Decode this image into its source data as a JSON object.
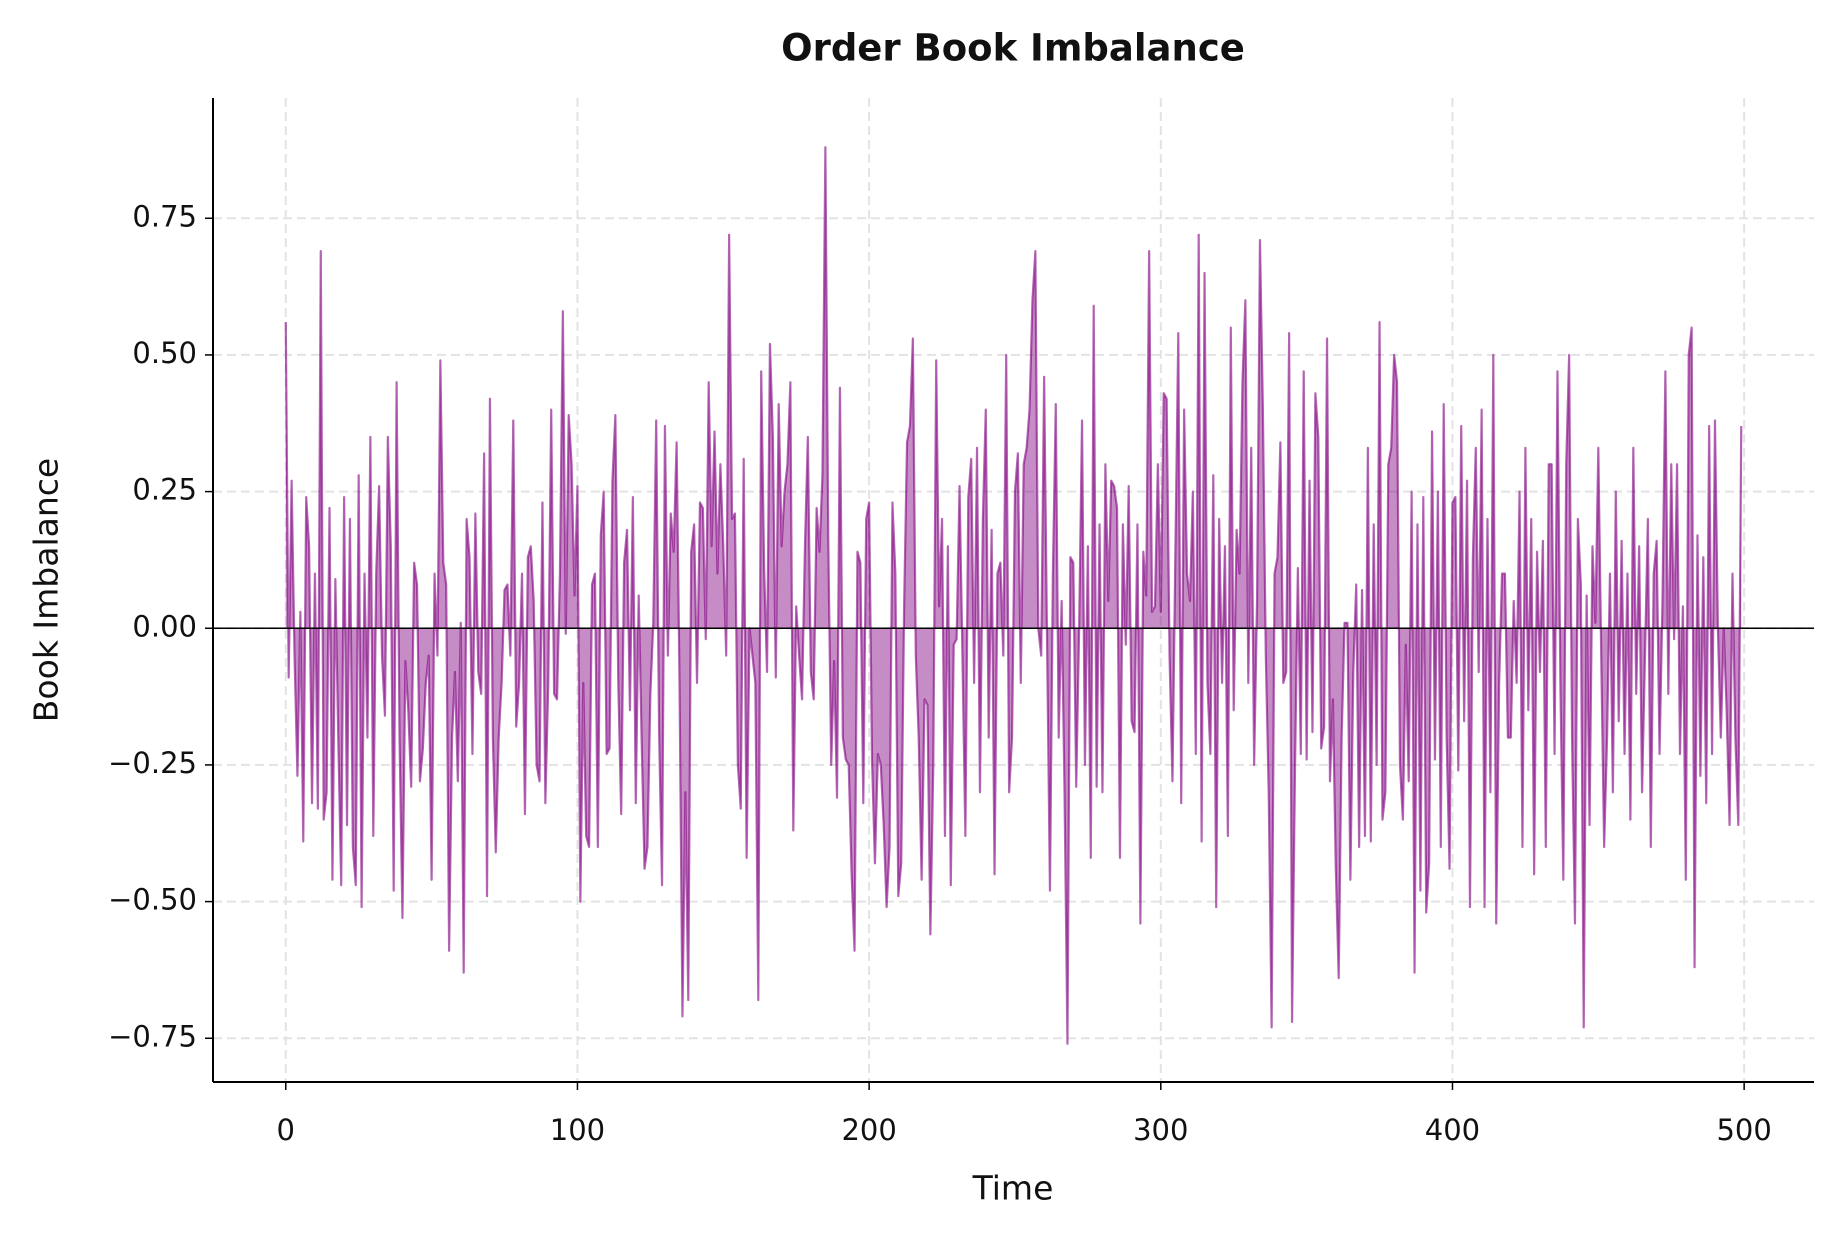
{
  "chart_data": {
    "type": "area",
    "title": "Order Book Imbalance",
    "xlabel": "Time",
    "ylabel": "Book Imbalance",
    "color": "purple",
    "grid": true,
    "axhline": 0,
    "xlim": [
      -24.95,
      523.95
    ],
    "xticks": [
      0,
      100,
      200,
      300,
      400,
      500
    ],
    "ylim": [
      -0.83,
      0.97
    ],
    "yticks": [
      {
        "value": -0.75,
        "label": "−0.75"
      },
      {
        "value": -0.5,
        "label": "−0.50"
      },
      {
        "value": -0.25,
        "label": "−0.25"
      },
      {
        "value": 0,
        "label": "0.00"
      },
      {
        "value": 0.25,
        "label": "0.25"
      },
      {
        "value": 0.5,
        "label": "0.50"
      },
      {
        "value": 0.75,
        "label": "0.75"
      }
    ],
    "x": [
      0,
      1,
      2,
      3,
      4,
      5,
      6,
      7,
      8,
      9,
      10,
      11,
      12,
      13,
      14,
      15,
      16,
      17,
      18,
      19,
      20,
      21,
      22,
      23,
      24,
      25,
      26,
      27,
      28,
      29,
      30,
      31,
      32,
      33,
      34,
      35,
      36,
      37,
      38,
      39,
      40,
      41,
      42,
      43,
      44,
      45,
      46,
      47,
      48,
      49,
      50,
      51,
      52,
      53,
      54,
      55,
      56,
      57,
      58,
      59,
      60,
      61,
      62,
      63,
      64,
      65,
      66,
      67,
      68,
      69,
      70,
      71,
      72,
      73,
      74,
      75,
      76,
      77,
      78,
      79,
      80,
      81,
      82,
      83,
      84,
      85,
      86,
      87,
      88,
      89,
      90,
      91,
      92,
      93,
      94,
      95,
      96,
      97,
      98,
      99,
      100,
      101,
      102,
      103,
      104,
      105,
      106,
      107,
      108,
      109,
      110,
      111,
      112,
      113,
      114,
      115,
      116,
      117,
      118,
      119,
      120,
      121,
      122,
      123,
      124,
      125,
      126,
      127,
      128,
      129,
      130,
      131,
      132,
      133,
      134,
      135,
      136,
      137,
      138,
      139,
      140,
      141,
      142,
      143,
      144,
      145,
      146,
      147,
      148,
      149,
      150,
      151,
      152,
      153,
      154,
      155,
      156,
      157,
      158,
      159,
      160,
      161,
      162,
      163,
      164,
      165,
      166,
      167,
      168,
      169,
      170,
      171,
      172,
      173,
      174,
      175,
      176,
      177,
      178,
      179,
      180,
      181,
      182,
      183,
      184,
      185,
      186,
      187,
      188,
      189,
      190,
      191,
      192,
      193,
      194,
      195,
      196,
      197,
      198,
      199,
      200,
      201,
      202,
      203,
      204,
      205,
      206,
      207,
      208,
      209,
      210,
      211,
      212,
      213,
      214,
      215,
      216,
      217,
      218,
      219,
      220,
      221,
      222,
      223,
      224,
      225,
      226,
      227,
      228,
      229,
      230,
      231,
      232,
      233,
      234,
      235,
      236,
      237,
      238,
      239,
      240,
      241,
      242,
      243,
      244,
      245,
      246,
      247,
      248,
      249,
      250,
      251,
      252,
      253,
      254,
      255,
      256,
      257,
      258,
      259,
      260,
      261,
      262,
      263,
      264,
      265,
      266,
      267,
      268,
      269,
      270,
      271,
      272,
      273,
      274,
      275,
      276,
      277,
      278,
      279,
      280,
      281,
      282,
      283,
      284,
      285,
      286,
      287,
      288,
      289,
      290,
      291,
      292,
      293,
      294,
      295,
      296,
      297,
      298,
      299,
      300,
      301,
      302,
      303,
      304,
      305,
      306,
      307,
      308,
      309,
      310,
      311,
      312,
      313,
      314,
      315,
      316,
      317,
      318,
      319,
      320,
      321,
      322,
      323,
      324,
      325,
      326,
      327,
      328,
      329,
      330,
      331,
      332,
      333,
      334,
      335,
      336,
      337,
      338,
      339,
      340,
      341,
      342,
      343,
      344,
      345,
      346,
      347,
      348,
      349,
      350,
      351,
      352,
      353,
      354,
      355,
      356,
      357,
      358,
      359,
      360,
      361,
      362,
      363,
      364,
      365,
      366,
      367,
      368,
      369,
      370,
      371,
      372,
      373,
      374,
      375,
      376,
      377,
      378,
      379,
      380,
      381,
      382,
      383,
      384,
      385,
      386,
      387,
      388,
      389,
      390,
      391,
      392,
      393,
      394,
      395,
      396,
      397,
      398,
      399,
      400,
      401,
      402,
      403,
      404,
      405,
      406,
      407,
      408,
      409,
      410,
      411,
      412,
      413,
      414,
      415,
      416,
      417,
      418,
      419,
      420,
      421,
      422,
      423,
      424,
      425,
      426,
      427,
      428,
      429,
      430,
      431,
      432,
      433,
      434,
      435,
      436,
      437,
      438,
      439,
      440,
      441,
      442,
      443,
      444,
      445,
      446,
      447,
      448,
      449,
      450,
      451,
      452,
      453,
      454,
      455,
      456,
      457,
      458,
      459,
      460,
      461,
      462,
      463,
      464,
      465,
      466,
      467,
      468,
      469,
      470,
      471,
      472,
      473,
      474,
      475,
      476,
      477,
      478,
      479,
      480,
      481,
      482,
      483,
      484,
      485,
      486,
      487,
      488,
      489,
      490,
      491,
      492,
      493,
      494,
      495,
      496,
      497,
      498,
      499
    ],
    "values": [
      0.56,
      -0.09,
      0.27,
      -0.05,
      -0.27,
      0.03,
      -0.39,
      0.24,
      0.15,
      -0.32,
      0.1,
      -0.33,
      0.69,
      -0.35,
      -0.3,
      0.22,
      -0.46,
      0.09,
      -0.2,
      -0.47,
      0.24,
      -0.36,
      0.2,
      -0.4,
      -0.47,
      0.28,
      -0.51,
      0.1,
      -0.2,
      0.35,
      -0.38,
      0.1,
      0.26,
      -0.05,
      -0.16,
      0.35,
      0.15,
      -0.48,
      0.45,
      -0.2,
      -0.53,
      -0.06,
      -0.15,
      -0.29,
      0.12,
      0.08,
      -0.28,
      -0.22,
      -0.1,
      -0.05,
      -0.46,
      0.1,
      -0.05,
      0.49,
      0.12,
      0.08,
      -0.59,
      -0.2,
      -0.08,
      -0.28,
      0.01,
      -0.63,
      0.2,
      0.13,
      -0.23,
      0.21,
      -0.08,
      -0.12,
      0.32,
      -0.49,
      0.42,
      -0.2,
      -0.41,
      -0.2,
      -0.1,
      0.07,
      0.08,
      -0.05,
      0.38,
      -0.18,
      -0.1,
      0.1,
      -0.34,
      0.13,
      0.15,
      0.05,
      -0.25,
      -0.28,
      0.23,
      -0.32,
      -0.1,
      0.4,
      -0.12,
      -0.13,
      0.1,
      0.58,
      -0.01,
      0.39,
      0.3,
      0.06,
      0.26,
      -0.5,
      -0.1,
      -0.38,
      -0.4,
      0.08,
      0.1,
      -0.4,
      0.17,
      0.25,
      -0.23,
      -0.22,
      0.27,
      0.39,
      -0.1,
      -0.34,
      0.12,
      0.18,
      -0.15,
      0.24,
      -0.32,
      0.06,
      -0.2,
      -0.44,
      -0.4,
      -0.12,
      0.01,
      0.38,
      -0.19,
      -0.47,
      0.37,
      -0.05,
      0.21,
      0.14,
      0.34,
      -0.1,
      -0.71,
      -0.3,
      -0.68,
      0.14,
      0.19,
      -0.1,
      0.23,
      0.22,
      -0.02,
      0.45,
      0.15,
      0.36,
      0.1,
      0.3,
      0.15,
      -0.05,
      0.72,
      0.2,
      0.21,
      -0.25,
      -0.33,
      0.31,
      -0.42,
      0.0,
      -0.05,
      -0.1,
      -0.68,
      0.47,
      0.11,
      -0.08,
      0.52,
      0.35,
      -0.09,
      0.41,
      0.15,
      0.25,
      0.3,
      0.45,
      -0.37,
      0.04,
      -0.05,
      -0.13,
      0.15,
      0.35,
      -0.08,
      -0.13,
      0.22,
      0.14,
      0.28,
      0.88,
      0.16,
      -0.25,
      -0.06,
      -0.31,
      0.44,
      -0.2,
      -0.24,
      -0.25,
      -0.45,
      -0.59,
      0.14,
      0.12,
      -0.32,
      0.2,
      0.23,
      -0.24,
      -0.43,
      -0.23,
      -0.25,
      -0.36,
      -0.51,
      -0.4,
      0.23,
      0.1,
      -0.49,
      -0.43,
      0.04,
      0.34,
      0.37,
      0.53,
      -0.05,
      -0.2,
      -0.46,
      -0.13,
      -0.14,
      -0.56,
      -0.25,
      0.49,
      0.04,
      0.2,
      -0.38,
      0.15,
      -0.47,
      -0.03,
      -0.02,
      0.26,
      -0.05,
      -0.38,
      0.24,
      0.31,
      -0.1,
      0.33,
      -0.3,
      0.2,
      0.4,
      -0.2,
      0.18,
      -0.45,
      0.1,
      0.12,
      -0.05,
      0.5,
      -0.3,
      -0.2,
      0.25,
      0.32,
      -0.1,
      0.3,
      0.33,
      0.4,
      0.6,
      0.69,
      0.0,
      -0.05,
      0.46,
      -0.02,
      -0.48,
      0.1,
      0.41,
      -0.2,
      0.05,
      -0.3,
      -0.76,
      0.13,
      0.12,
      -0.29,
      0.0,
      0.38,
      -0.25,
      0.15,
      -0.42,
      0.59,
      -0.29,
      0.19,
      -0.3,
      0.3,
      0.05,
      0.27,
      0.26,
      0.22,
      -0.42,
      0.19,
      -0.03,
      0.26,
      -0.17,
      -0.19,
      0.19,
      -0.54,
      0.14,
      0.06,
      0.69,
      0.03,
      0.04,
      0.3,
      0.03,
      0.43,
      0.42,
      -0.05,
      -0.28,
      0.14,
      0.54,
      -0.32,
      0.4,
      0.1,
      0.05,
      0.25,
      -0.23,
      0.72,
      -0.39,
      0.65,
      -0.1,
      -0.23,
      0.28,
      -0.51,
      0.2,
      -0.1,
      0.15,
      -0.38,
      0.55,
      -0.15,
      0.18,
      0.1,
      0.45,
      0.6,
      -0.1,
      0.33,
      -0.25,
      0.05,
      0.71,
      0.4,
      -0.05,
      -0.3,
      -0.73,
      0.1,
      0.13,
      0.34,
      -0.1,
      -0.08,
      0.54,
      -0.72,
      -0.26,
      0.11,
      -0.23,
      0.47,
      -0.24,
      0.27,
      -0.19,
      0.43,
      0.35,
      -0.22,
      -0.18,
      0.53,
      -0.28,
      -0.13,
      -0.44,
      -0.64,
      -0.2,
      0.01,
      0.01,
      -0.46,
      -0.08,
      0.08,
      -0.4,
      0.07,
      -0.38,
      0.33,
      -0.39,
      0.19,
      -0.25,
      0.56,
      -0.35,
      -0.3,
      0.3,
      0.33,
      0.5,
      0.45,
      -0.25,
      -0.35,
      -0.03,
      -0.28,
      0.25,
      -0.63,
      0.19,
      -0.48,
      0.24,
      -0.52,
      -0.43,
      0.36,
      -0.24,
      0.25,
      -0.4,
      0.41,
      -0.2,
      -0.44,
      0.23,
      0.24,
      -0.26,
      0.37,
      -0.17,
      0.27,
      -0.51,
      0.13,
      0.33,
      -0.08,
      0.4,
      -0.51,
      0.2,
      -0.3,
      0.5,
      -0.54,
      -0.1,
      0.1,
      0.1,
      -0.2,
      -0.2,
      0.05,
      -0.1,
      0.25,
      -0.4,
      0.33,
      -0.15,
      0.2,
      -0.45,
      0.14,
      -0.08,
      0.16,
      -0.4,
      0.3,
      0.3,
      -0.23,
      0.47,
      -0.1,
      -0.46,
      0.3,
      0.5,
      -0.2,
      -0.54,
      0.2,
      0.08,
      -0.73,
      0.06,
      -0.36,
      0.15,
      0.01,
      0.33,
      -0.05,
      -0.4,
      -0.2,
      0.1,
      -0.3,
      0.25,
      -0.17,
      0.16,
      -0.23,
      0.1,
      -0.35,
      0.33,
      -0.12,
      0.15,
      -0.3,
      -0.05,
      0.2,
      -0.4,
      0.1,
      0.16,
      -0.23,
      0.05,
      0.47,
      -0.12,
      0.3,
      -0.02,
      0.3,
      -0.23,
      0.04,
      -0.46,
      0.5,
      0.55,
      -0.62,
      0.17,
      -0.27,
      0.13,
      -0.32,
      0.37,
      -0.23,
      0.38,
      0.0,
      -0.2,
      0.0,
      -0.15,
      -0.36,
      0.1,
      -0.2,
      -0.36,
      0.37
    ]
  }
}
